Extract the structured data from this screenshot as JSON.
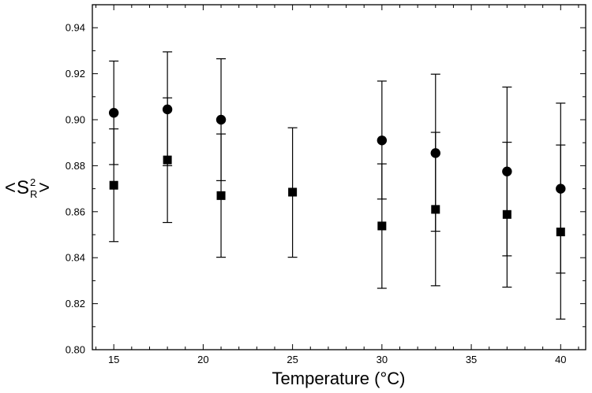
{
  "chart_data": {
    "type": "scatter",
    "title": "",
    "xlabel": "Temperature (°C)",
    "ylabel": {
      "open": "<",
      "symbol": "S",
      "superscript": "2",
      "subscript": "R",
      "close": ">"
    },
    "xlim": [
      13.8,
      41.4
    ],
    "ylim": [
      0.8,
      0.95
    ],
    "xticks": [
      15,
      20,
      25,
      30,
      35,
      40
    ],
    "yticks": [
      0.8,
      0.82,
      0.84,
      0.86,
      0.88,
      0.9,
      0.92,
      0.94
    ],
    "ytick_labels": [
      "0.80",
      "0.82",
      "0.84",
      "0.86",
      "0.88",
      "0.90",
      "0.92",
      "0.94"
    ],
    "grid": false,
    "series": [
      {
        "marker": "circle",
        "color": "#000000",
        "points": [
          {
            "x": 15,
            "y": 0.903,
            "err_low": 0.8805,
            "err_high": 0.9255
          },
          {
            "x": 18,
            "y": 0.9045,
            "err_low": 0.88,
            "err_high": 0.9295
          },
          {
            "x": 21,
            "y": 0.9,
            "err_low": 0.8735,
            "err_high": 0.9265
          },
          {
            "x": 30,
            "y": 0.891,
            "err_low": 0.8655,
            "err_high": 0.9168
          },
          {
            "x": 33,
            "y": 0.8855,
            "err_low": 0.8515,
            "err_high": 0.9198
          },
          {
            "x": 37,
            "y": 0.8775,
            "err_low": 0.8408,
            "err_high": 0.9142
          },
          {
            "x": 40,
            "y": 0.87,
            "err_low": 0.8333,
            "err_high": 0.9072
          }
        ]
      },
      {
        "marker": "square",
        "color": "#000000",
        "points": [
          {
            "x": 15,
            "y": 0.8715,
            "err_low": 0.847,
            "err_high": 0.896
          },
          {
            "x": 18,
            "y": 0.8825,
            "err_low": 0.8553,
            "err_high": 0.9095
          },
          {
            "x": 21,
            "y": 0.867,
            "err_low": 0.8402,
            "err_high": 0.8938
          },
          {
            "x": 25,
            "y": 0.8685,
            "err_low": 0.8402,
            "err_high": 0.8965
          },
          {
            "x": 30,
            "y": 0.8538,
            "err_low": 0.8267,
            "err_high": 0.8808
          },
          {
            "x": 33,
            "y": 0.861,
            "err_low": 0.8278,
            "err_high": 0.8945
          },
          {
            "x": 37,
            "y": 0.8588,
            "err_low": 0.8272,
            "err_high": 0.8902
          },
          {
            "x": 40,
            "y": 0.8512,
            "err_low": 0.8133,
            "err_high": 0.889
          }
        ]
      }
    ]
  }
}
